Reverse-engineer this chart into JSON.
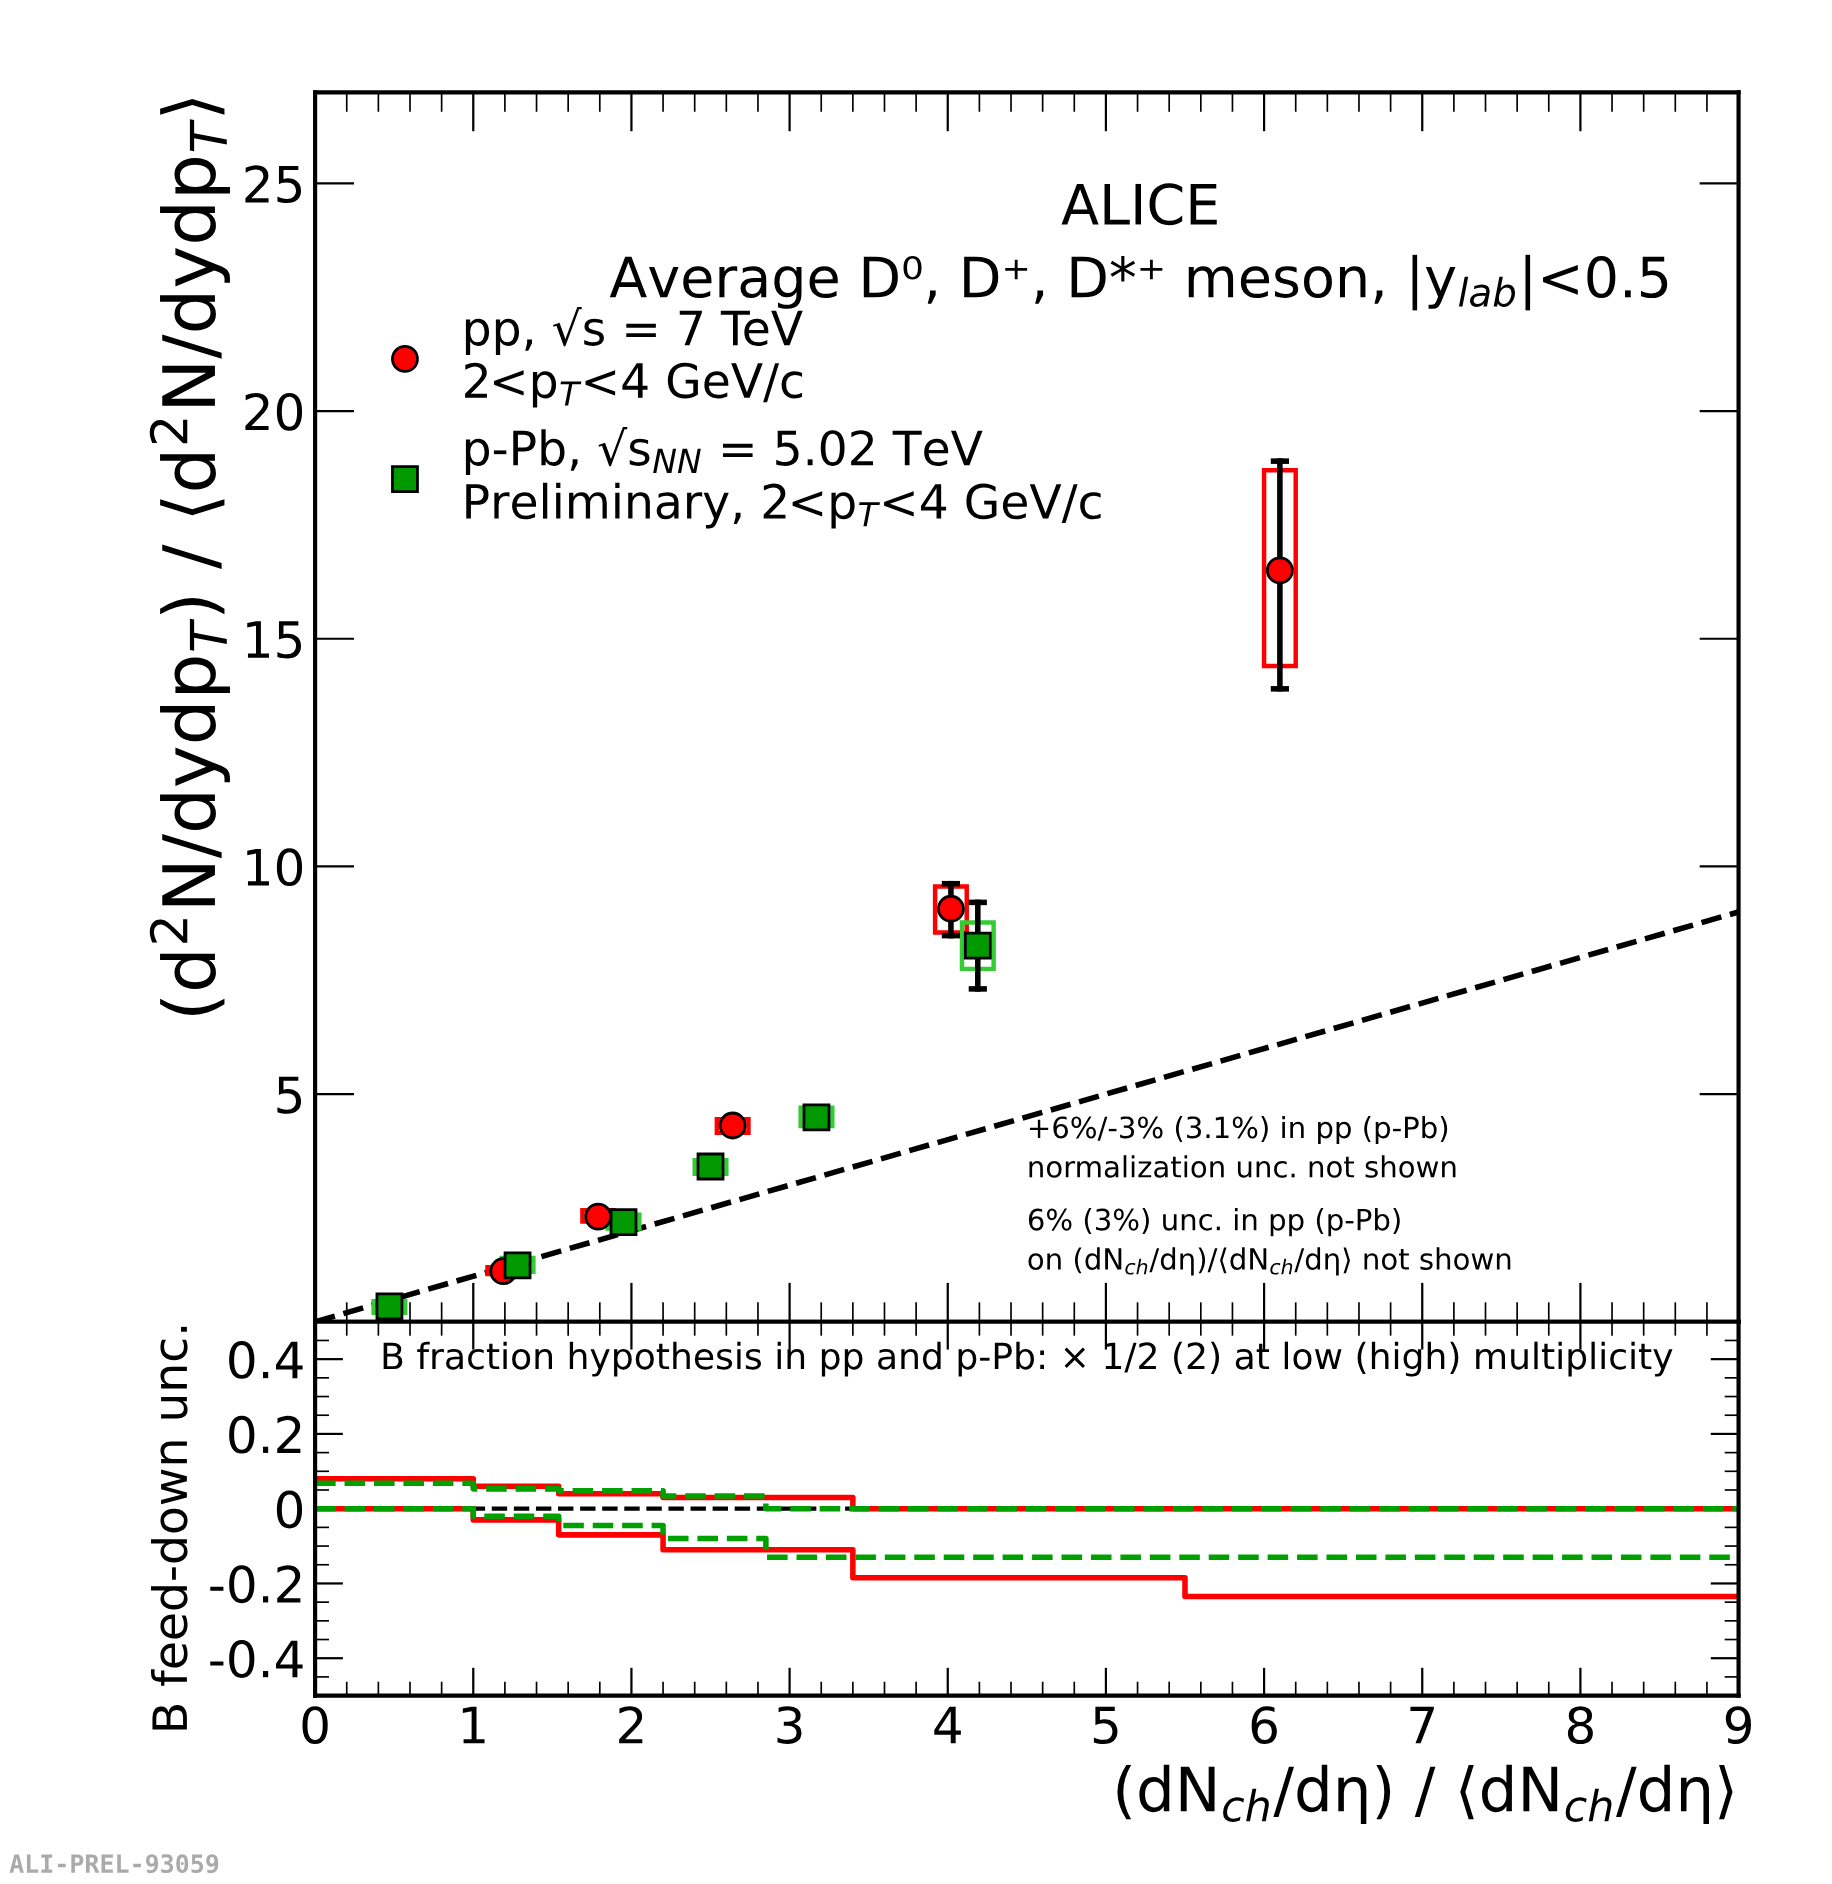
{
  "chart_data": [
    {
      "type": "scatter",
      "ylabel": "(d$^{2}$N/dydp$_{T}$) / ⟨d$^{2}$N/dydp$_{T}$⟩",
      "xlim": [
        0,
        9
      ],
      "xticks": [
        0,
        1,
        2,
        3,
        4,
        5,
        6,
        7,
        8,
        9
      ],
      "ylim": [
        0,
        27
      ],
      "yticks": [
        5,
        10,
        15,
        20,
        25
      ],
      "tick_labels": "y",
      "grid": false,
      "legend": "top left",
      "annotations": [
        "ALICE",
        "Average D⁰, D⁺, D*⁺ meson, |y$_{lab}$|<0.5",
        "+6%/-3% (3.1%) in pp (p-Pb)\nnormalization unc. not shown",
        "6% (3%) unc. in pp (p-Pb)\non (dN$_{ch}$/dη)/⟨dN$_{ch}$/dη⟩ not shown",
        "ALI-PREL-93059"
      ],
      "series": [
        {
          "type": "line",
          "color": "#000000",
          "line_style": "dashed",
          "marker": "none",
          "x": [
            0,
            9
          ],
          "values": [
            0,
            9
          ]
        },
        {
          "type": "bar",
          "color": "#ff0000",
          "x": [
            1.19,
            1.79,
            2.64,
            4.02,
            6.1
          ],
          "base": [
            1.05,
            2.2,
            4.15,
            8.55,
            14.4
          ],
          "values": [
            0.15,
            0.25,
            0.3,
            1.01,
            4.3
          ]
        },
        {
          "type": "bar",
          "color": "#33cc33",
          "x": [
            0.47,
            1.28,
            1.95,
            2.5,
            3.17,
            4.19
          ],
          "base": [
            0.2,
            1.1,
            2.05,
            3.25,
            4.3,
            7.75
          ],
          "values": [
            0.25,
            0.3,
            0.3,
            0.3,
            0.4,
            1.02
          ]
        },
        {
          "type": "scatter",
          "name": "pp, √s = 7 TeV\n2<p$_{T}$<4 GeV/c",
          "color": "#ff0000",
          "marker": "circle",
          "x": [
            1.19,
            1.79,
            2.64,
            4.02,
            6.1
          ],
          "values": [
            1.11,
            2.31,
            4.31,
            9.07,
            16.5
          ],
          "errors": [
            null,
            null,
            null,
            [
              8.48,
              9.62
            ],
            [
              13.9,
              18.9
            ]
          ]
        },
        {
          "type": "scatter",
          "name": "p-Pb, √s$_{NN}$ = 5.02 TeV\nPreliminary, 2<p$_{T}$<4 GeV/c",
          "color": "#009900",
          "marker": "square",
          "x": [
            0.47,
            1.28,
            1.95,
            2.5,
            3.17,
            4.19
          ],
          "values": [
            0.34,
            1.24,
            2.19,
            3.41,
            4.49,
            8.26
          ],
          "errors": [
            null,
            null,
            null,
            null,
            null,
            [
              7.31,
              9.21
            ]
          ]
        }
      ]
    },
    {
      "type": "step",
      "ylabel": "B feed-down unc.",
      "xlabel": "(dN$_{ch}$/dη) / ⟨dN$_{ch}$/dη⟩",
      "xlim": [
        0,
        9
      ],
      "xticks": [
        0,
        1,
        2,
        3,
        4,
        5,
        6,
        7,
        8,
        9
      ],
      "ylim": [
        -0.5,
        0.5
      ],
      "yticks": [
        -0.4,
        -0.2,
        0,
        0.2,
        0.4
      ],
      "grid": false,
      "annotations": [
        "B fraction hypothesis in pp and p-Pb: × 1/2 (2) at low (high) multiplicity"
      ],
      "ref_lines": [
        {
          "axis": "y",
          "value": 0,
          "color": "#000000",
          "line_style": "dashed"
        }
      ],
      "series": [
        {
          "color": "#ff0000",
          "line_style": "solid",
          "x": [
            0,
            1,
            1.54,
            2.2,
            3.4,
            9
          ],
          "values": [
            0.08,
            0.06,
            0.04,
            0.03,
            0,
            0
          ]
        },
        {
          "color": "#ff0000",
          "line_style": "solid",
          "x": [
            0,
            1,
            1.54,
            2.2,
            3.4,
            5.5,
            9
          ],
          "values": [
            0,
            -0.03,
            -0.07,
            -0.11,
            -0.185,
            -0.235,
            -0.235
          ]
        },
        {
          "color": "#00a000",
          "line_style": "dashed",
          "x": [
            0,
            1,
            1.54,
            2.2,
            2.85,
            9
          ],
          "values": [
            0.068,
            0.053,
            0.048,
            0.034,
            0,
            0
          ]
        },
        {
          "color": "#00a000",
          "line_style": "dashed",
          "x": [
            0,
            1,
            1.54,
            2.2,
            2.85,
            9
          ],
          "values": [
            0,
            -0.02,
            -0.045,
            -0.08,
            -0.13,
            -0.13
          ]
        }
      ]
    }
  ]
}
